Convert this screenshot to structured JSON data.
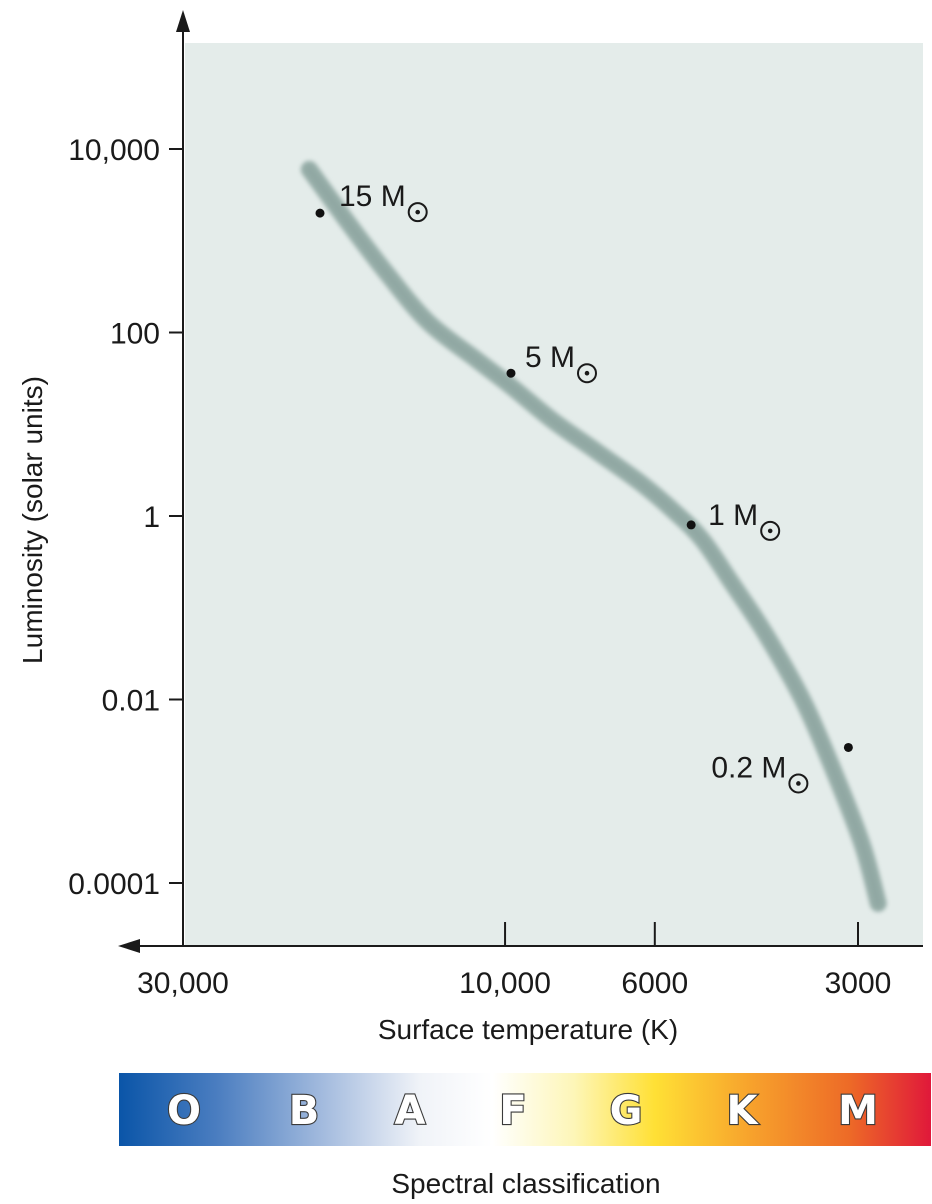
{
  "chart_data": {
    "type": "line",
    "title": "",
    "xlabel": "Surface temperature (K)",
    "ylabel": "Luminosity (solar units)",
    "x_scale": "log",
    "y_scale": "log",
    "x_reversed": true,
    "xlim": [
      40000,
      2500
    ],
    "ylim": [
      3e-05,
      1000000
    ],
    "grid": false,
    "plot_background": "#e4ecea",
    "curve_color": "#97aea9",
    "x_ticks": [
      {
        "value": 30000,
        "label": "30,000"
      },
      {
        "value": 10000,
        "label": "10,000"
      },
      {
        "value": 6000,
        "label": "6000"
      },
      {
        "value": 3000,
        "label": "3000"
      }
    ],
    "y_ticks": [
      {
        "value": 10000,
        "label": "10,000"
      },
      {
        "value": 100,
        "label": "100"
      },
      {
        "value": 1,
        "label": "1"
      },
      {
        "value": 0.01,
        "label": "0.01"
      },
      {
        "value": 0.0001,
        "label": "0.0001"
      }
    ],
    "series": [
      {
        "x": [
          19500,
          17000,
          15000,
          13000,
          11000,
          9800,
          8500,
          7300,
          6300,
          5600,
          5100,
          4600,
          4100,
          3600,
          3200,
          2950,
          2800
        ],
        "y": [
          6000,
          1500,
          450,
          130,
          50,
          26,
          11,
          5,
          2.3,
          1.1,
          0.55,
          0.18,
          0.05,
          0.009,
          0.0012,
          0.00025,
          6e-05
        ]
      }
    ],
    "points": [
      {
        "label": "15 M",
        "x": 18800,
        "y": 2000
      },
      {
        "label": "5 M",
        "x": 9800,
        "y": 36
      },
      {
        "label": "1 M",
        "x": 5300,
        "y": 0.8
      },
      {
        "label": "0.2 M",
        "x": 3100,
        "y": 0.003
      }
    ],
    "spectral_classification": {
      "label": "Spectral classification",
      "classes": [
        "O",
        "B",
        "A",
        "F",
        "G",
        "K",
        "M"
      ]
    }
  }
}
